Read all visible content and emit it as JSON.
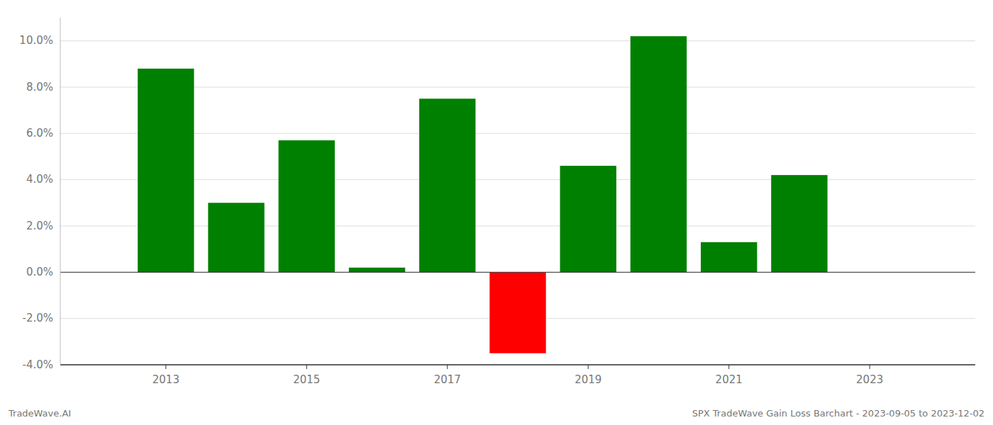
{
  "chart_data": {
    "type": "bar",
    "x": [
      2013,
      2014,
      2015,
      2016,
      2017,
      2018,
      2019,
      2020,
      2021,
      2022
    ],
    "values": [
      0.088,
      0.03,
      0.057,
      0.002,
      0.075,
      -0.035,
      0.046,
      0.102,
      0.013,
      0.042
    ],
    "colors": [
      "#008000",
      "#008000",
      "#008000",
      "#008000",
      "#008000",
      "#ff0000",
      "#008000",
      "#008000",
      "#008000",
      "#008000"
    ],
    "xlim": [
      2011.5,
      2024.5
    ],
    "xticks": [
      2013,
      2015,
      2017,
      2019,
      2021,
      2023
    ],
    "ylim": [
      -0.04,
      0.11
    ],
    "yticks": [
      {
        "value": -0.04,
        "label": "-4.0%"
      },
      {
        "value": -0.02,
        "label": "-2.0%"
      },
      {
        "value": 0.0,
        "label": "0.0%"
      },
      {
        "value": 0.02,
        "label": "2.0%"
      },
      {
        "value": 0.04,
        "label": "4.0%"
      },
      {
        "value": 0.06,
        "label": "6.0%"
      },
      {
        "value": 0.08,
        "label": "8.0%"
      },
      {
        "value": 0.1,
        "label": "10.0%"
      }
    ],
    "grid": true,
    "annotations": [
      "TradeWave.AI",
      "SPX TradeWave Gain Loss Barchart - 2023-09-05 to 2023-12-02"
    ]
  }
}
